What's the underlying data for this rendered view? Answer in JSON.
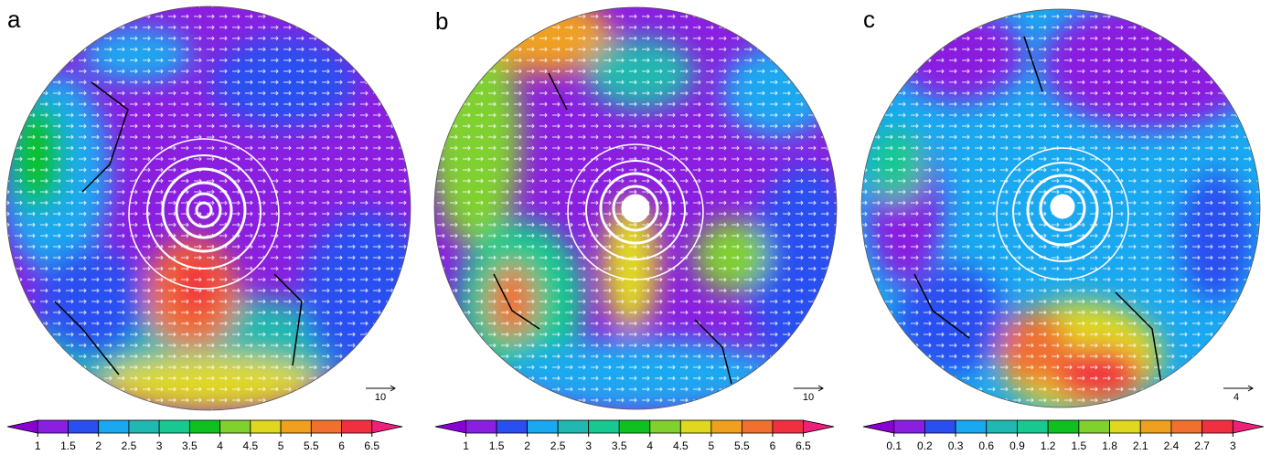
{
  "panels": [
    {
      "label": "a",
      "reference_vector": {
        "label": "10"
      },
      "colorbar": {
        "ticks": [
          1,
          1.5,
          2,
          2.5,
          3,
          3.5,
          4,
          4.5,
          5,
          5.5,
          6,
          6.5
        ],
        "colors": [
          "#8a00d4",
          "#8a1fe0",
          "#2a4ff0",
          "#1aa8f0",
          "#20b8b0",
          "#18c890",
          "#10c020",
          "#80d030",
          "#e0d820",
          "#f0a020",
          "#f07030",
          "#f03040",
          "#f0207a"
        ]
      }
    },
    {
      "label": "b",
      "reference_vector": {
        "label": "10"
      },
      "colorbar": {
        "ticks": [
          1,
          1.5,
          2,
          2.5,
          3,
          3.5,
          4,
          4.5,
          5,
          5.5,
          6,
          6.5
        ],
        "colors": [
          "#8a00d4",
          "#8a1fe0",
          "#2a4ff0",
          "#1aa8f0",
          "#20b8b0",
          "#18c890",
          "#10c020",
          "#80d030",
          "#e0d820",
          "#f0a020",
          "#f07030",
          "#f03040",
          "#f0207a"
        ]
      }
    },
    {
      "label": "c",
      "reference_vector": {
        "label": "4"
      },
      "colorbar": {
        "ticks": [
          0.1,
          0.2,
          0.3,
          0.6,
          0.9,
          1.2,
          1.5,
          1.8,
          2.1,
          2.4,
          2.7,
          3
        ],
        "colors": [
          "#8a00d4",
          "#8a1fe0",
          "#2a4ff0",
          "#1aa8f0",
          "#20b8b0",
          "#18c890",
          "#10c020",
          "#80d030",
          "#e0d820",
          "#f0a020",
          "#f07030",
          "#f03040",
          "#f0207a"
        ]
      }
    }
  ]
}
